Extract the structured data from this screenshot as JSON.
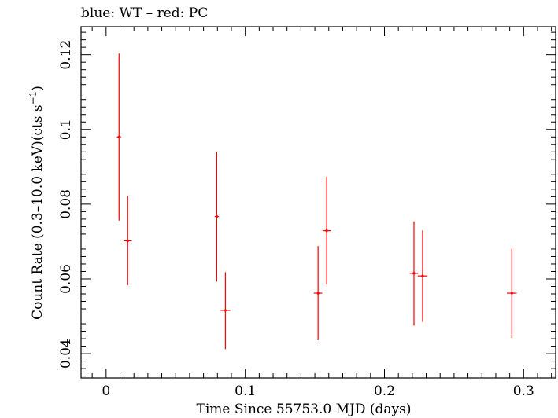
{
  "chart_data": {
    "type": "scatter",
    "title": "blue: WT – red: PC",
    "xlabel": "Time Since 55753.0 MJD (days)",
    "ylabel_main": "Count Rate (0.3–10.0 keV)(cts s",
    "ylabel_sup": "−1",
    "ylabel_end": ")",
    "xlim": [
      -0.018,
      0.323
    ],
    "ylim": [
      0.0335,
      0.1275
    ],
    "x_ticks": [
      0,
      0.1,
      0.2,
      0.3
    ],
    "x_tick_labels": [
      "0",
      "0.1",
      "0.2",
      "0.3"
    ],
    "y_ticks": [
      0.04,
      0.06,
      0.08,
      0.1,
      0.12
    ],
    "y_tick_labels": [
      "0.04",
      "0.06",
      "0.08",
      "0.1",
      "0.12"
    ],
    "grid": false,
    "series": [
      {
        "color": "#ff0000",
        "points": [
          {
            "x": 0.0093,
            "xerr": 0.0015,
            "y": 0.098,
            "ylo": 0.0756,
            "yhi": 0.1203
          },
          {
            "x": 0.0155,
            "xerr": 0.003,
            "y": 0.0702,
            "ylo": 0.0583,
            "yhi": 0.0822
          },
          {
            "x": 0.0795,
            "xerr": 0.0015,
            "y": 0.0767,
            "ylo": 0.0593,
            "yhi": 0.094
          },
          {
            "x": 0.0857,
            "xerr": 0.0035,
            "y": 0.0516,
            "ylo": 0.0412,
            "yhi": 0.0618
          },
          {
            "x": 0.1523,
            "xerr": 0.003,
            "y": 0.0562,
            "ylo": 0.0436,
            "yhi": 0.0688
          },
          {
            "x": 0.1585,
            "xerr": 0.003,
            "y": 0.0729,
            "ylo": 0.0585,
            "yhi": 0.0873
          },
          {
            "x": 0.2212,
            "xerr": 0.003,
            "y": 0.0615,
            "ylo": 0.0475,
            "yhi": 0.0754
          },
          {
            "x": 0.2274,
            "xerr": 0.0035,
            "y": 0.0608,
            "ylo": 0.0485,
            "yhi": 0.073
          },
          {
            "x": 0.2915,
            "xerr": 0.0035,
            "y": 0.0562,
            "ylo": 0.0442,
            "yhi": 0.0681
          }
        ]
      }
    ]
  }
}
